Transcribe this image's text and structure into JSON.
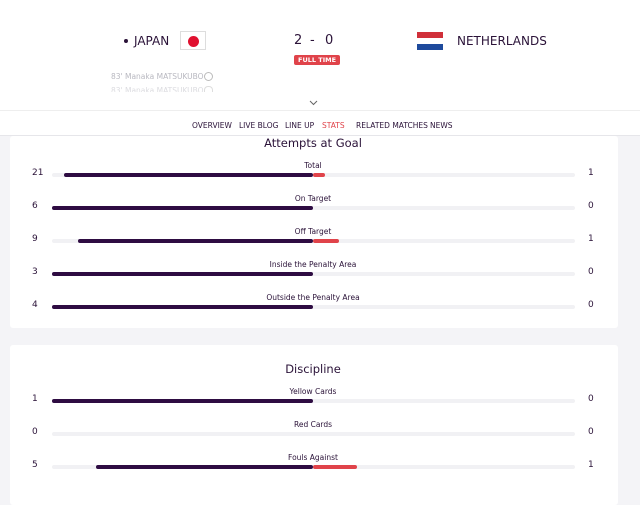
{
  "header": {
    "home_team": "JAPAN",
    "away_team": "NETHERLANDS",
    "home_score": 2,
    "score_separator": "-",
    "away_score": 0,
    "status": "FULL TIME",
    "scorers": [
      "83' Manaka MATSUKUBO",
      "83' Manaka MATSUKUBO"
    ]
  },
  "nav": {
    "items": [
      "OVERVIEW",
      "LIVE BLOG",
      "LINE UP",
      "STATS",
      "RELATED MATCHES",
      "NEWS"
    ],
    "active": 3
  },
  "sections": [
    {
      "title": "Attempts at Goal",
      "stats": [
        {
          "label": "Total",
          "home": 21,
          "away": 1
        },
        {
          "label": "On Target",
          "home": 6,
          "away": 0
        },
        {
          "label": "Off Target",
          "home": 9,
          "away": 1
        },
        {
          "label": "Inside the Penalty Area",
          "home": 3,
          "away": 0
        },
        {
          "label": "Outside the Penalty Area",
          "home": 4,
          "away": 0
        }
      ]
    },
    {
      "title": "Discipline",
      "stats": [
        {
          "label": "Yellow Cards",
          "home": 1,
          "away": 0
        },
        {
          "label": "Red Cards",
          "home": 0,
          "away": 0
        },
        {
          "label": "Fouls Against",
          "home": 5,
          "away": 1
        }
      ]
    }
  ]
}
